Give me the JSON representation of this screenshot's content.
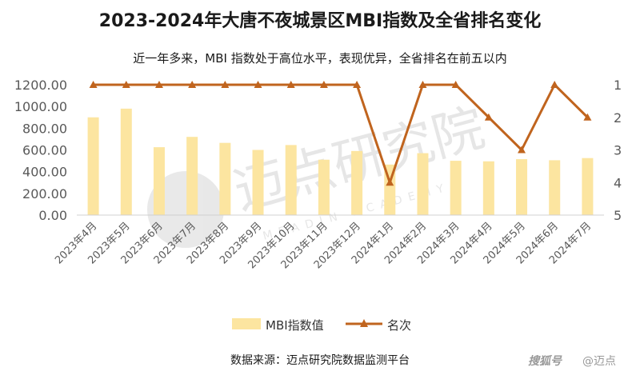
{
  "header": {
    "title": "2023-2024年大唐不夜城景区MBI指数及全省排名变化",
    "subtitle": "近一年多来，MBI 指数处于高位水平，表现优异，全省排名在前五以内"
  },
  "footer": {
    "source": "数据来源：迈点研究院数据监测平台",
    "brand_watermark": "搜狐号",
    "user_watermark": "@迈点"
  },
  "watermark": {
    "text": "迈点研究院",
    "sub_text": "MEADIN ACADEMY"
  },
  "colors": {
    "bar": "#FCE5A0",
    "line": "#C0641E",
    "axis_text": "#595959"
  },
  "chart_data": {
    "type": "bar",
    "categories": [
      "2023年4月",
      "2023年5月",
      "2023年6月",
      "2023年7月",
      "2023年8月",
      "2023年9月",
      "2023年10月",
      "2023年11月",
      "2023年12月",
      "2024年1月",
      "2024年2月",
      "2024年3月",
      "2024年4月",
      "2024年5月",
      "2024年6月",
      "2024年7月"
    ],
    "series": [
      {
        "name": "MBI指数值",
        "type": "bar",
        "axis": "left",
        "values": [
          900,
          980,
          625,
          720,
          665,
          600,
          645,
          510,
          590,
          465,
          570,
          500,
          495,
          515,
          505,
          525
        ]
      },
      {
        "name": "名次",
        "type": "line",
        "axis": "right",
        "values": [
          1,
          1,
          1,
          1,
          1,
          1,
          1,
          1,
          1,
          4,
          1,
          1,
          2,
          3,
          1,
          2
        ]
      }
    ],
    "y_left": {
      "ylim": [
        0,
        1200
      ],
      "ticks": [
        "0.00",
        "200.00",
        "400.00",
        "600.00",
        "800.00",
        "1000.00",
        "1200.00"
      ]
    },
    "y_right": {
      "ylim": [
        1,
        5
      ],
      "inverted": true,
      "ticks": [
        "1",
        "2",
        "3",
        "4",
        "5"
      ]
    },
    "legend": {
      "position": "bottom"
    },
    "grid": false
  }
}
